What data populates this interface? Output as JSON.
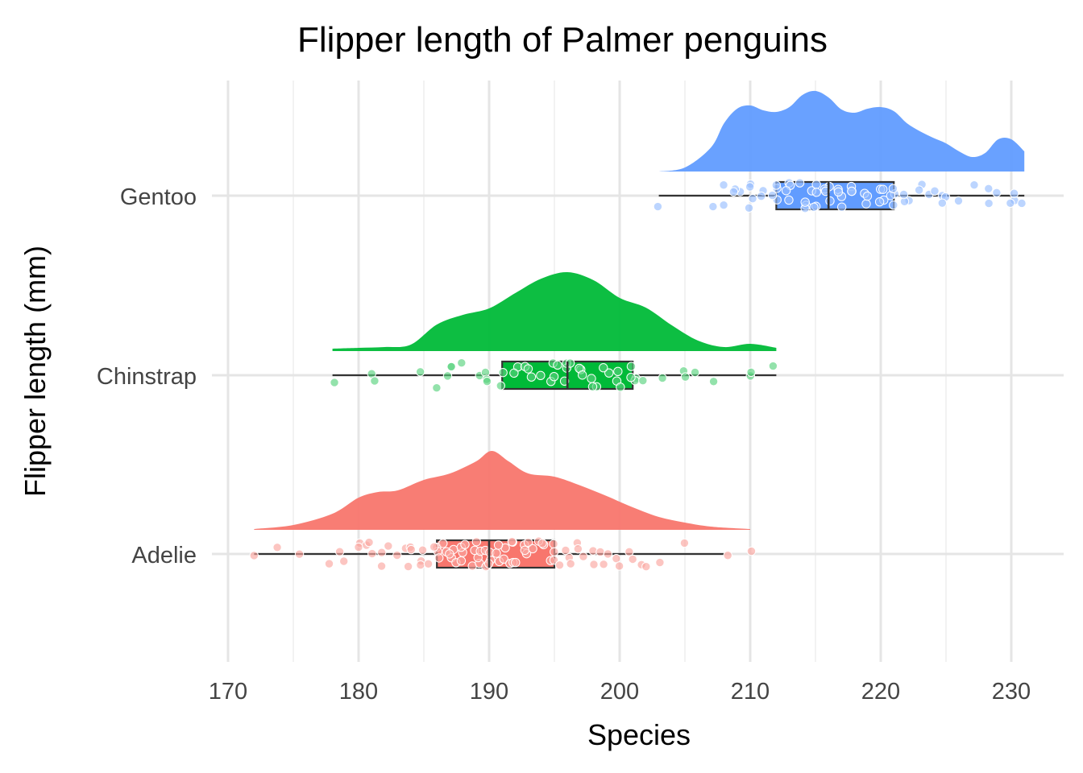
{
  "chart_data": {
    "type": "raincloud",
    "title": "Flipper length of Palmer penguins",
    "xlabel": "Species",
    "ylabel": "Flipper length (mm)",
    "xlim": [
      169.5,
      232.5
    ],
    "xticks": [
      170,
      180,
      190,
      200,
      210,
      220,
      230
    ],
    "xtick_labels": [
      "170",
      "180",
      "190",
      "200",
      "210",
      "220",
      "230"
    ],
    "categories": [
      "Adelie",
      "Chinstrap",
      "Gentoo"
    ],
    "series": [
      {
        "name": "Adelie",
        "color": "#F8766D",
        "min": 172,
        "q1": 186,
        "median": 190,
        "q3": 195,
        "max": 208,
        "outliers": [
          210
        ],
        "density": {
          "x": [
            172,
            175,
            178,
            180,
            181.5,
            183,
            185,
            187,
            189,
            190.2,
            191.5,
            193,
            195,
            197,
            199,
            201,
            203,
            205,
            207,
            210
          ],
          "y": [
            0.01,
            0.06,
            0.2,
            0.4,
            0.47,
            0.49,
            0.62,
            0.7,
            0.85,
            0.98,
            0.85,
            0.7,
            0.66,
            0.55,
            0.42,
            0.28,
            0.16,
            0.09,
            0.04,
            0.01
          ]
        },
        "points": [
          172,
          174,
          175.5,
          178,
          178.5,
          179,
          180,
          180,
          180.5,
          181,
          181,
          181.5,
          182,
          182,
          183,
          183.5,
          184,
          184,
          184,
          185,
          185,
          185,
          185.5,
          186,
          186,
          186,
          186,
          186.5,
          187,
          187,
          187,
          187,
          187.5,
          188,
          188,
          188,
          188,
          188.5,
          189,
          189,
          189,
          189,
          189.5,
          190,
          190,
          190,
          190,
          190,
          190,
          190.5,
          191,
          191,
          191,
          191,
          191.5,
          192,
          192,
          192,
          192,
          192.5,
          193,
          193,
          193,
          193.5,
          194,
          194,
          194,
          195,
          195,
          195,
          195,
          195.5,
          196,
          196,
          196.5,
          197,
          197,
          197.5,
          198,
          198,
          198.5,
          199,
          199,
          199.5,
          200,
          200.5,
          201,
          201.5,
          202,
          203,
          205,
          208,
          210
        ]
      },
      {
        "name": "Chinstrap",
        "color": "#00BA38",
        "min": 178,
        "q1": 191,
        "median": 196,
        "q3": 201,
        "max": 212,
        "outliers": [],
        "density": {
          "x": [
            178,
            180,
            182,
            184,
            186,
            188,
            190,
            192,
            194,
            196,
            198,
            200,
            202,
            204,
            206,
            208,
            210,
            212
          ],
          "y": [
            0.03,
            0.04,
            0.05,
            0.08,
            0.33,
            0.45,
            0.53,
            0.72,
            0.9,
            0.98,
            0.88,
            0.66,
            0.54,
            0.32,
            0.13,
            0.05,
            0.09,
            0.04
          ]
        },
        "points": [
          178,
          181,
          181,
          185,
          186,
          187,
          187,
          187,
          188,
          189,
          190,
          190,
          190,
          191,
          191,
          192,
          192,
          193,
          193,
          193,
          194,
          195,
          195,
          195,
          195,
          196,
          196,
          196,
          196,
          197,
          197,
          197,
          198,
          198,
          198,
          199,
          199,
          200,
          200,
          200,
          201,
          201,
          201,
          201,
          202,
          203,
          205,
          205,
          206,
          207,
          210,
          210,
          212
        ]
      },
      {
        "name": "Gentoo",
        "color": "#619CFF",
        "min": 203,
        "q1": 212,
        "median": 216,
        "q3": 221,
        "max": 231,
        "outliers": [],
        "density": {
          "x": [
            203,
            205,
            207,
            208,
            209,
            210,
            211,
            212,
            213,
            214,
            215,
            216,
            217,
            218,
            219,
            220,
            221,
            222,
            223,
            224,
            225,
            226,
            227,
            228,
            229,
            230,
            231
          ],
          "y": [
            0.0,
            0.05,
            0.3,
            0.6,
            0.78,
            0.82,
            0.76,
            0.74,
            0.8,
            0.95,
            1.0,
            0.92,
            0.77,
            0.73,
            0.78,
            0.8,
            0.75,
            0.6,
            0.5,
            0.42,
            0.35,
            0.25,
            0.18,
            0.23,
            0.4,
            0.4,
            0.25
          ]
        },
        "points": [
          203,
          207,
          208,
          208,
          209,
          209,
          209,
          210,
          210,
          210,
          210,
          211,
          211,
          212,
          212,
          212,
          212,
          213,
          213,
          213,
          213,
          214,
          214,
          214,
          214,
          215,
          215,
          215,
          215,
          215,
          216,
          216,
          216,
          216,
          217,
          217,
          217,
          217,
          218,
          218,
          218,
          219,
          219,
          219,
          220,
          220,
          220,
          220,
          221,
          221,
          221,
          221,
          222,
          222,
          222,
          223,
          223,
          224,
          224,
          225,
          225,
          225,
          226,
          227,
          228,
          228,
          229,
          230,
          230,
          230,
          231
        ]
      }
    ]
  }
}
